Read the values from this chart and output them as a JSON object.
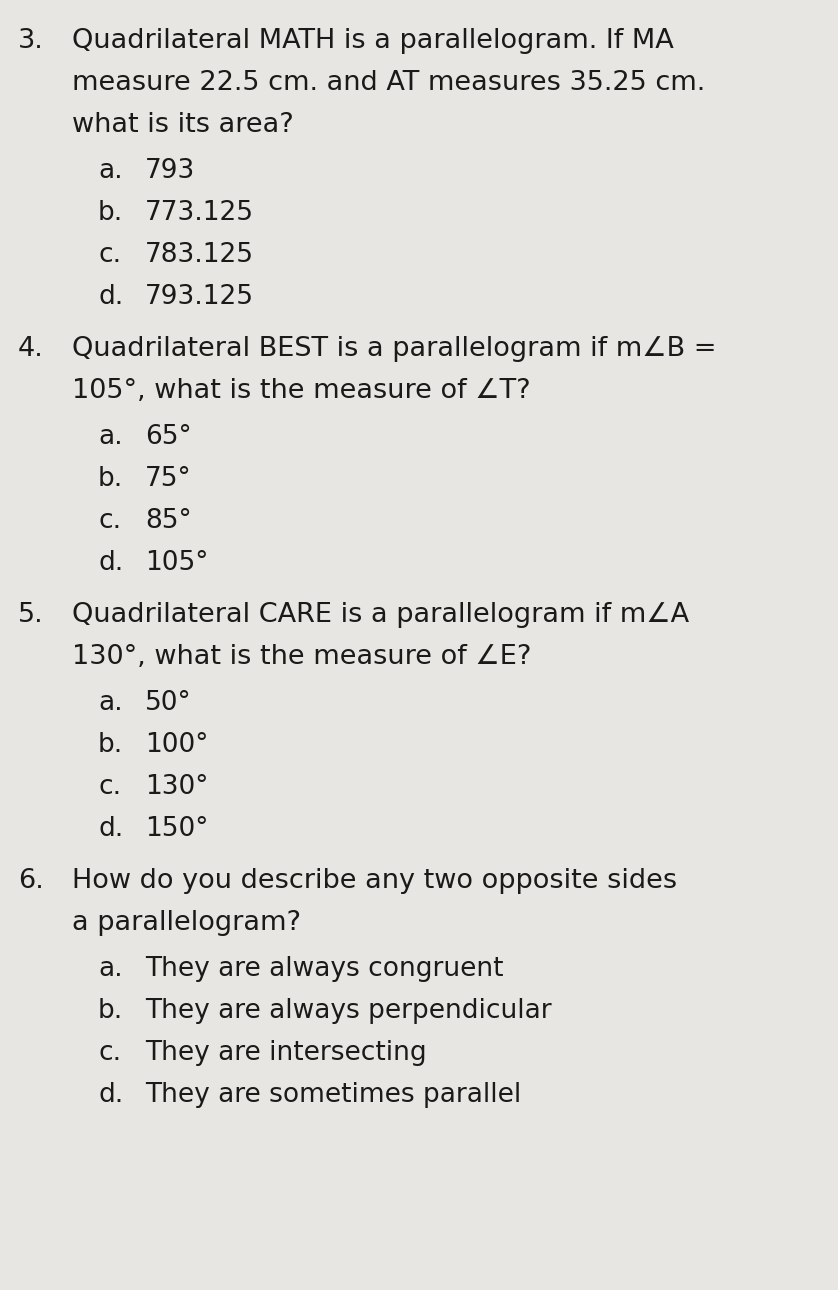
{
  "background_color": "#e8e6e2",
  "text_color": "#1a1a1a",
  "font_size_question": 19.5,
  "font_size_answer": 19.0,
  "questions": [
    {
      "number": "3.",
      "text_lines": [
        "Quadrilateral MATH is a parallelogram. If MA",
        "measure 22.5 cm. and AT measures 35.25 cm.",
        "what is its area?"
      ],
      "answers": [
        {
          "label": "a.",
          "text": "793"
        },
        {
          "label": "b.",
          "text": "773.125"
        },
        {
          "label": "c.",
          "text": "783.125"
        },
        {
          "label": "d.",
          "text": "793.125"
        }
      ]
    },
    {
      "number": "4.",
      "text_lines": [
        "Quadrilateral BEST is a parallelogram if m∠B =",
        "105°, what is the measure of ∠T?"
      ],
      "answers": [
        {
          "label": "a.",
          "text": "65°"
        },
        {
          "label": "b.",
          "text": "75°"
        },
        {
          "label": "c.",
          "text": "85°"
        },
        {
          "label": "d.",
          "text": "105°"
        }
      ]
    },
    {
      "number": "5.",
      "text_lines": [
        "Quadrilateral CARE is a parallelogram if m∠A",
        "130°, what is the measure of ∠E?"
      ],
      "answers": [
        {
          "label": "a.",
          "text": "50°"
        },
        {
          "label": "b.",
          "text": "100°"
        },
        {
          "label": "c.",
          "text": "130°"
        },
        {
          "label": "d.",
          "text": "150°"
        }
      ]
    },
    {
      "number": "6.",
      "text_lines": [
        "How do you describe any two opposite sides",
        "a parallelogram?"
      ],
      "answers": [
        {
          "label": "a.",
          "text": "They are always congruent"
        },
        {
          "label": "b.",
          "text": "They are always perpendicular"
        },
        {
          "label": "c.",
          "text": "They are intersecting"
        },
        {
          "label": "d.",
          "text": "They are sometimes parallel"
        }
      ]
    }
  ]
}
